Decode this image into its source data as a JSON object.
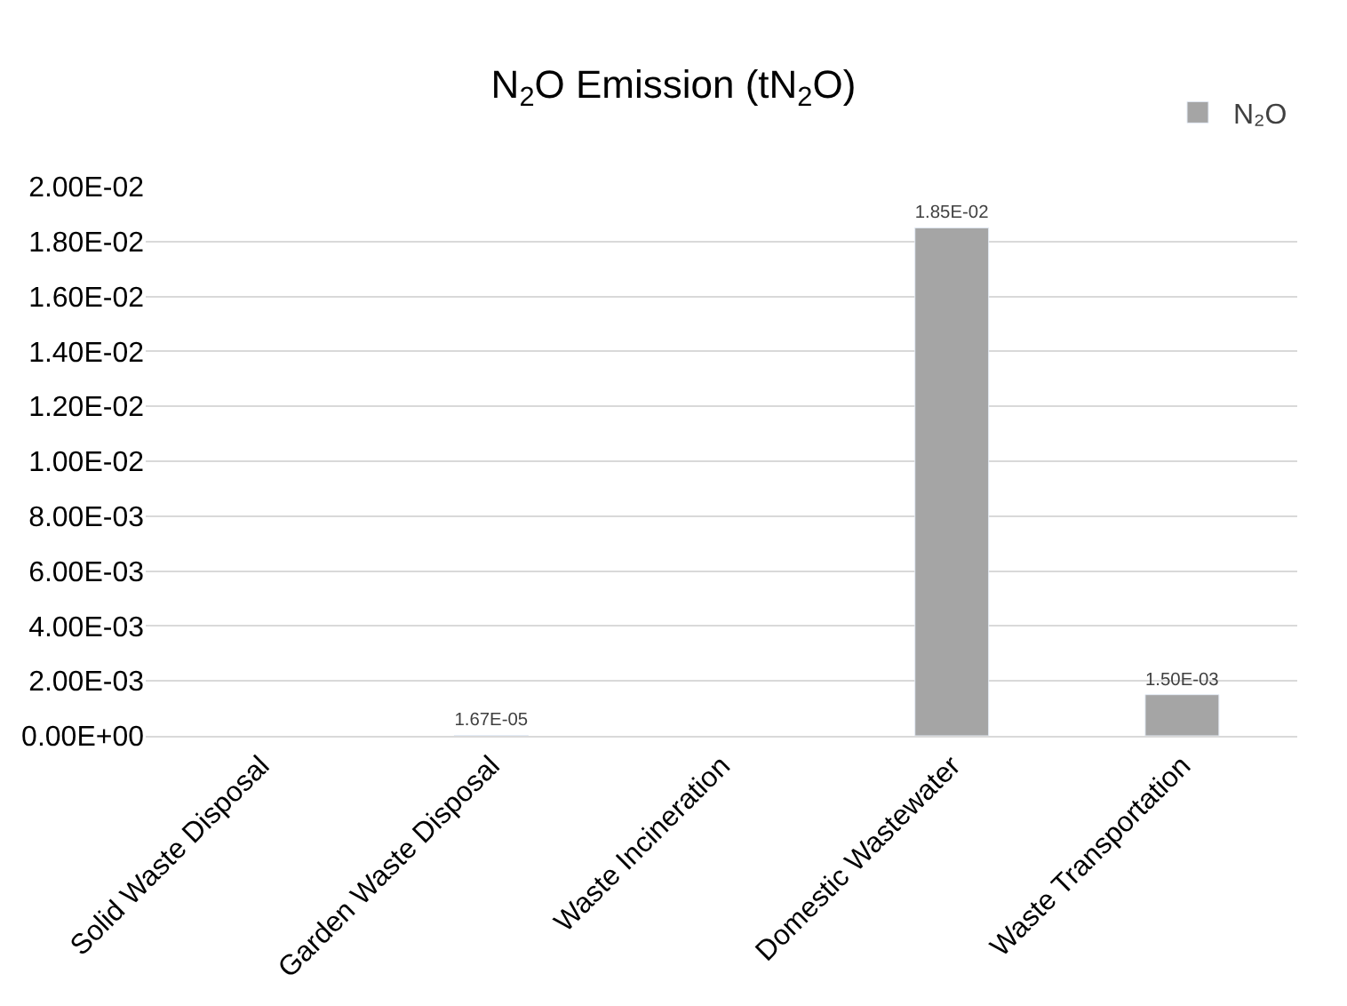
{
  "chart_data": {
    "type": "bar",
    "title": "N$_{2}$O Emission (tN$_{2}$O)",
    "categories": [
      "Solid Waste Disposal",
      "Garden Waste Disposal",
      "Waste Incineration",
      "Domestic Wastewater",
      "Waste Transportation"
    ],
    "series": [
      {
        "name": "N₂O",
        "color": "#a5a5a5",
        "values": [
          null,
          1.67e-05,
          null,
          0.0185,
          0.0015
        ],
        "value_labels": [
          null,
          "1.67E-05",
          null,
          "1.85E-02",
          "1.50E-03"
        ]
      }
    ],
    "ylim": [
      0,
      0.02
    ],
    "yticks": [
      {
        "value": 0,
        "label": "0.00E+00"
      },
      {
        "value": 0.002,
        "label": "2.00E-03"
      },
      {
        "value": 0.004,
        "label": "4.00E-03"
      },
      {
        "value": 0.006,
        "label": "6.00E-03"
      },
      {
        "value": 0.008,
        "label": "8.00E-03"
      },
      {
        "value": 0.01,
        "label": "1.00E-02"
      },
      {
        "value": 0.012,
        "label": "1.20E-02"
      },
      {
        "value": 0.014,
        "label": "1.40E-02"
      },
      {
        "value": 0.016,
        "label": "1.60E-02"
      },
      {
        "value": 0.018,
        "label": "1.80E-02"
      },
      {
        "value": 0.02,
        "label": "2.00E-02"
      }
    ],
    "grid": "y",
    "legend": "top right"
  }
}
